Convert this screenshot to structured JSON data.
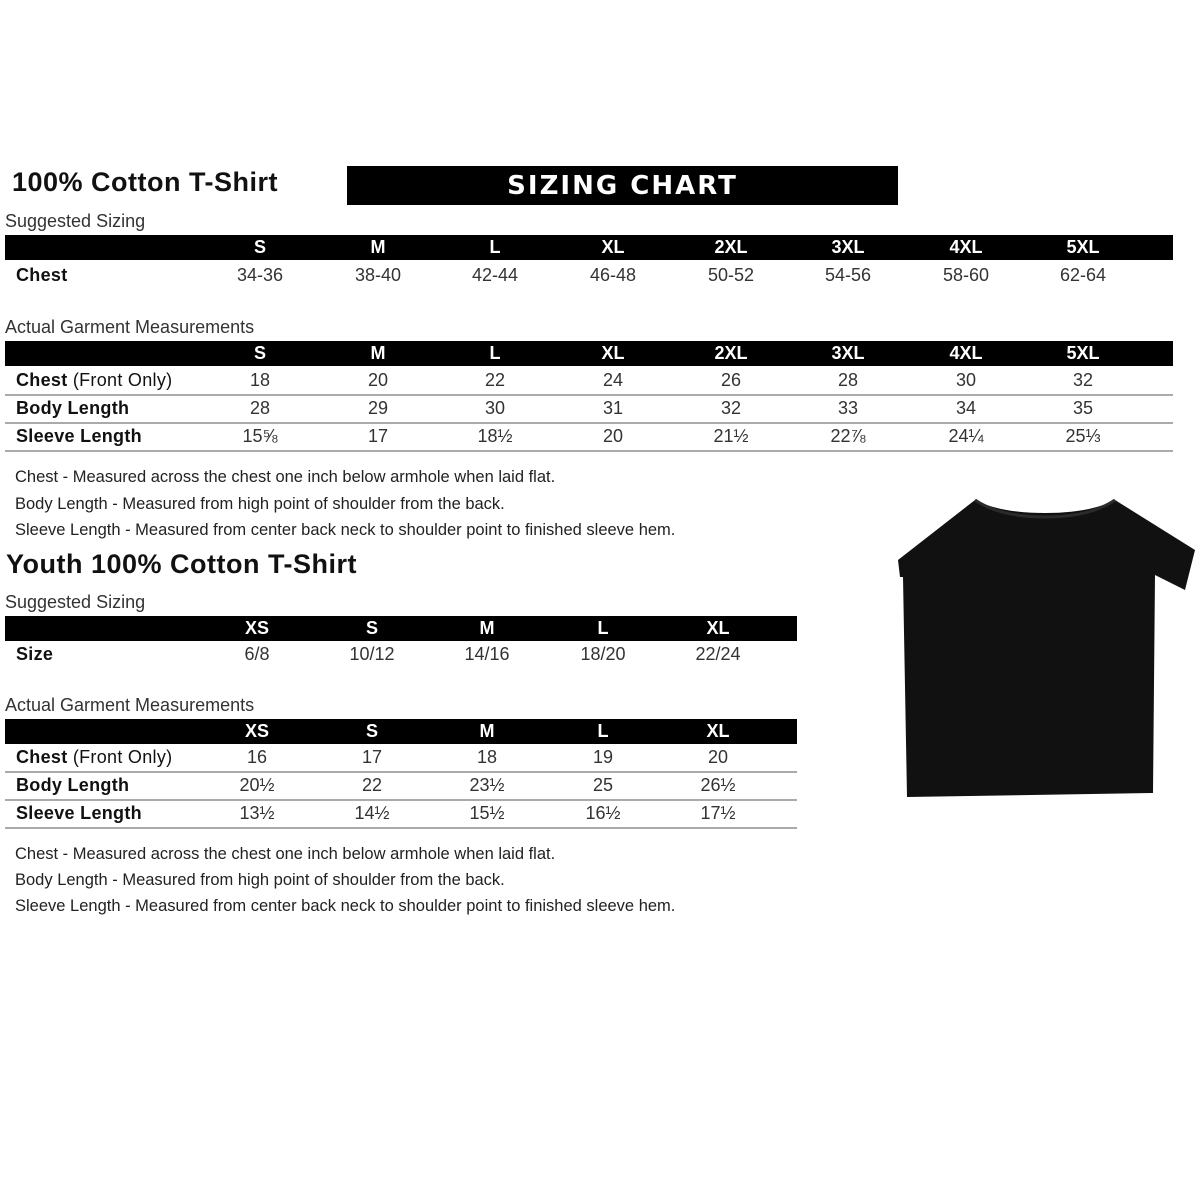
{
  "adult": {
    "title": "100% Cotton T-Shirt",
    "banner": "SIZING CHART",
    "suggested_label": "Suggested Sizing",
    "sizes": [
      "S",
      "M",
      "L",
      "XL",
      "2XL",
      "3XL",
      "4XL",
      "5XL"
    ],
    "suggested_rows": [
      {
        "label": "Chest",
        "label_extra": "",
        "values": [
          "34-36",
          "38-40",
          "42-44",
          "46-48",
          "50-52",
          "54-56",
          "58-60",
          "62-64"
        ]
      }
    ],
    "actual_label": "Actual Garment Measurements",
    "actual_rows": [
      {
        "label": "Chest",
        "label_extra": " (Front Only)",
        "values": [
          "18",
          "20",
          "22",
          "24",
          "26",
          "28",
          "30",
          "32"
        ]
      },
      {
        "label": "Body Length",
        "label_extra": "",
        "values": [
          "28",
          "29",
          "30",
          "31",
          "32",
          "33",
          "34",
          "35"
        ]
      },
      {
        "label": "Sleeve Length",
        "label_extra": "",
        "values": [
          "15⅝",
          "17",
          "18½",
          "20",
          "21½",
          "22⅞",
          "24¼",
          "25⅓"
        ]
      }
    ],
    "notes": [
      "Chest - Measured across the chest one inch below armhole when laid flat.",
      "Body Length - Measured from high point of shoulder from the back.",
      "Sleeve Length - Measured from center back neck to shoulder point to finished sleeve hem."
    ]
  },
  "youth": {
    "title": "Youth 100% Cotton T-Shirt",
    "suggested_label": "Suggested Sizing",
    "sizes": [
      "XS",
      "S",
      "M",
      "L",
      "XL"
    ],
    "suggested_rows": [
      {
        "label": "Size",
        "label_extra": "",
        "values": [
          "6/8",
          "10/12",
          "14/16",
          "18/20",
          "22/24"
        ]
      }
    ],
    "actual_label": "Actual Garment Measurements",
    "actual_rows": [
      {
        "label": "Chest",
        "label_extra": " (Front Only)",
        "values": [
          "16",
          "17",
          "18",
          "19",
          "20"
        ]
      },
      {
        "label": "Body Length",
        "label_extra": "",
        "values": [
          "20½",
          "22",
          "23½",
          "25",
          "26½"
        ]
      },
      {
        "label": "Sleeve Length",
        "label_extra": "",
        "values": [
          "13½",
          "14½",
          "15½",
          "16½",
          "17½"
        ]
      }
    ],
    "notes": [
      "Chest - Measured across the chest one inch below armhole when laid flat.",
      "Body Length - Measured from high point of shoulder from the back.",
      "Sleeve Length - Measured from center back neck to shoulder point to finished sleeve hem."
    ]
  },
  "image": {
    "icon": "t-shirt-icon",
    "color": "#111111"
  }
}
